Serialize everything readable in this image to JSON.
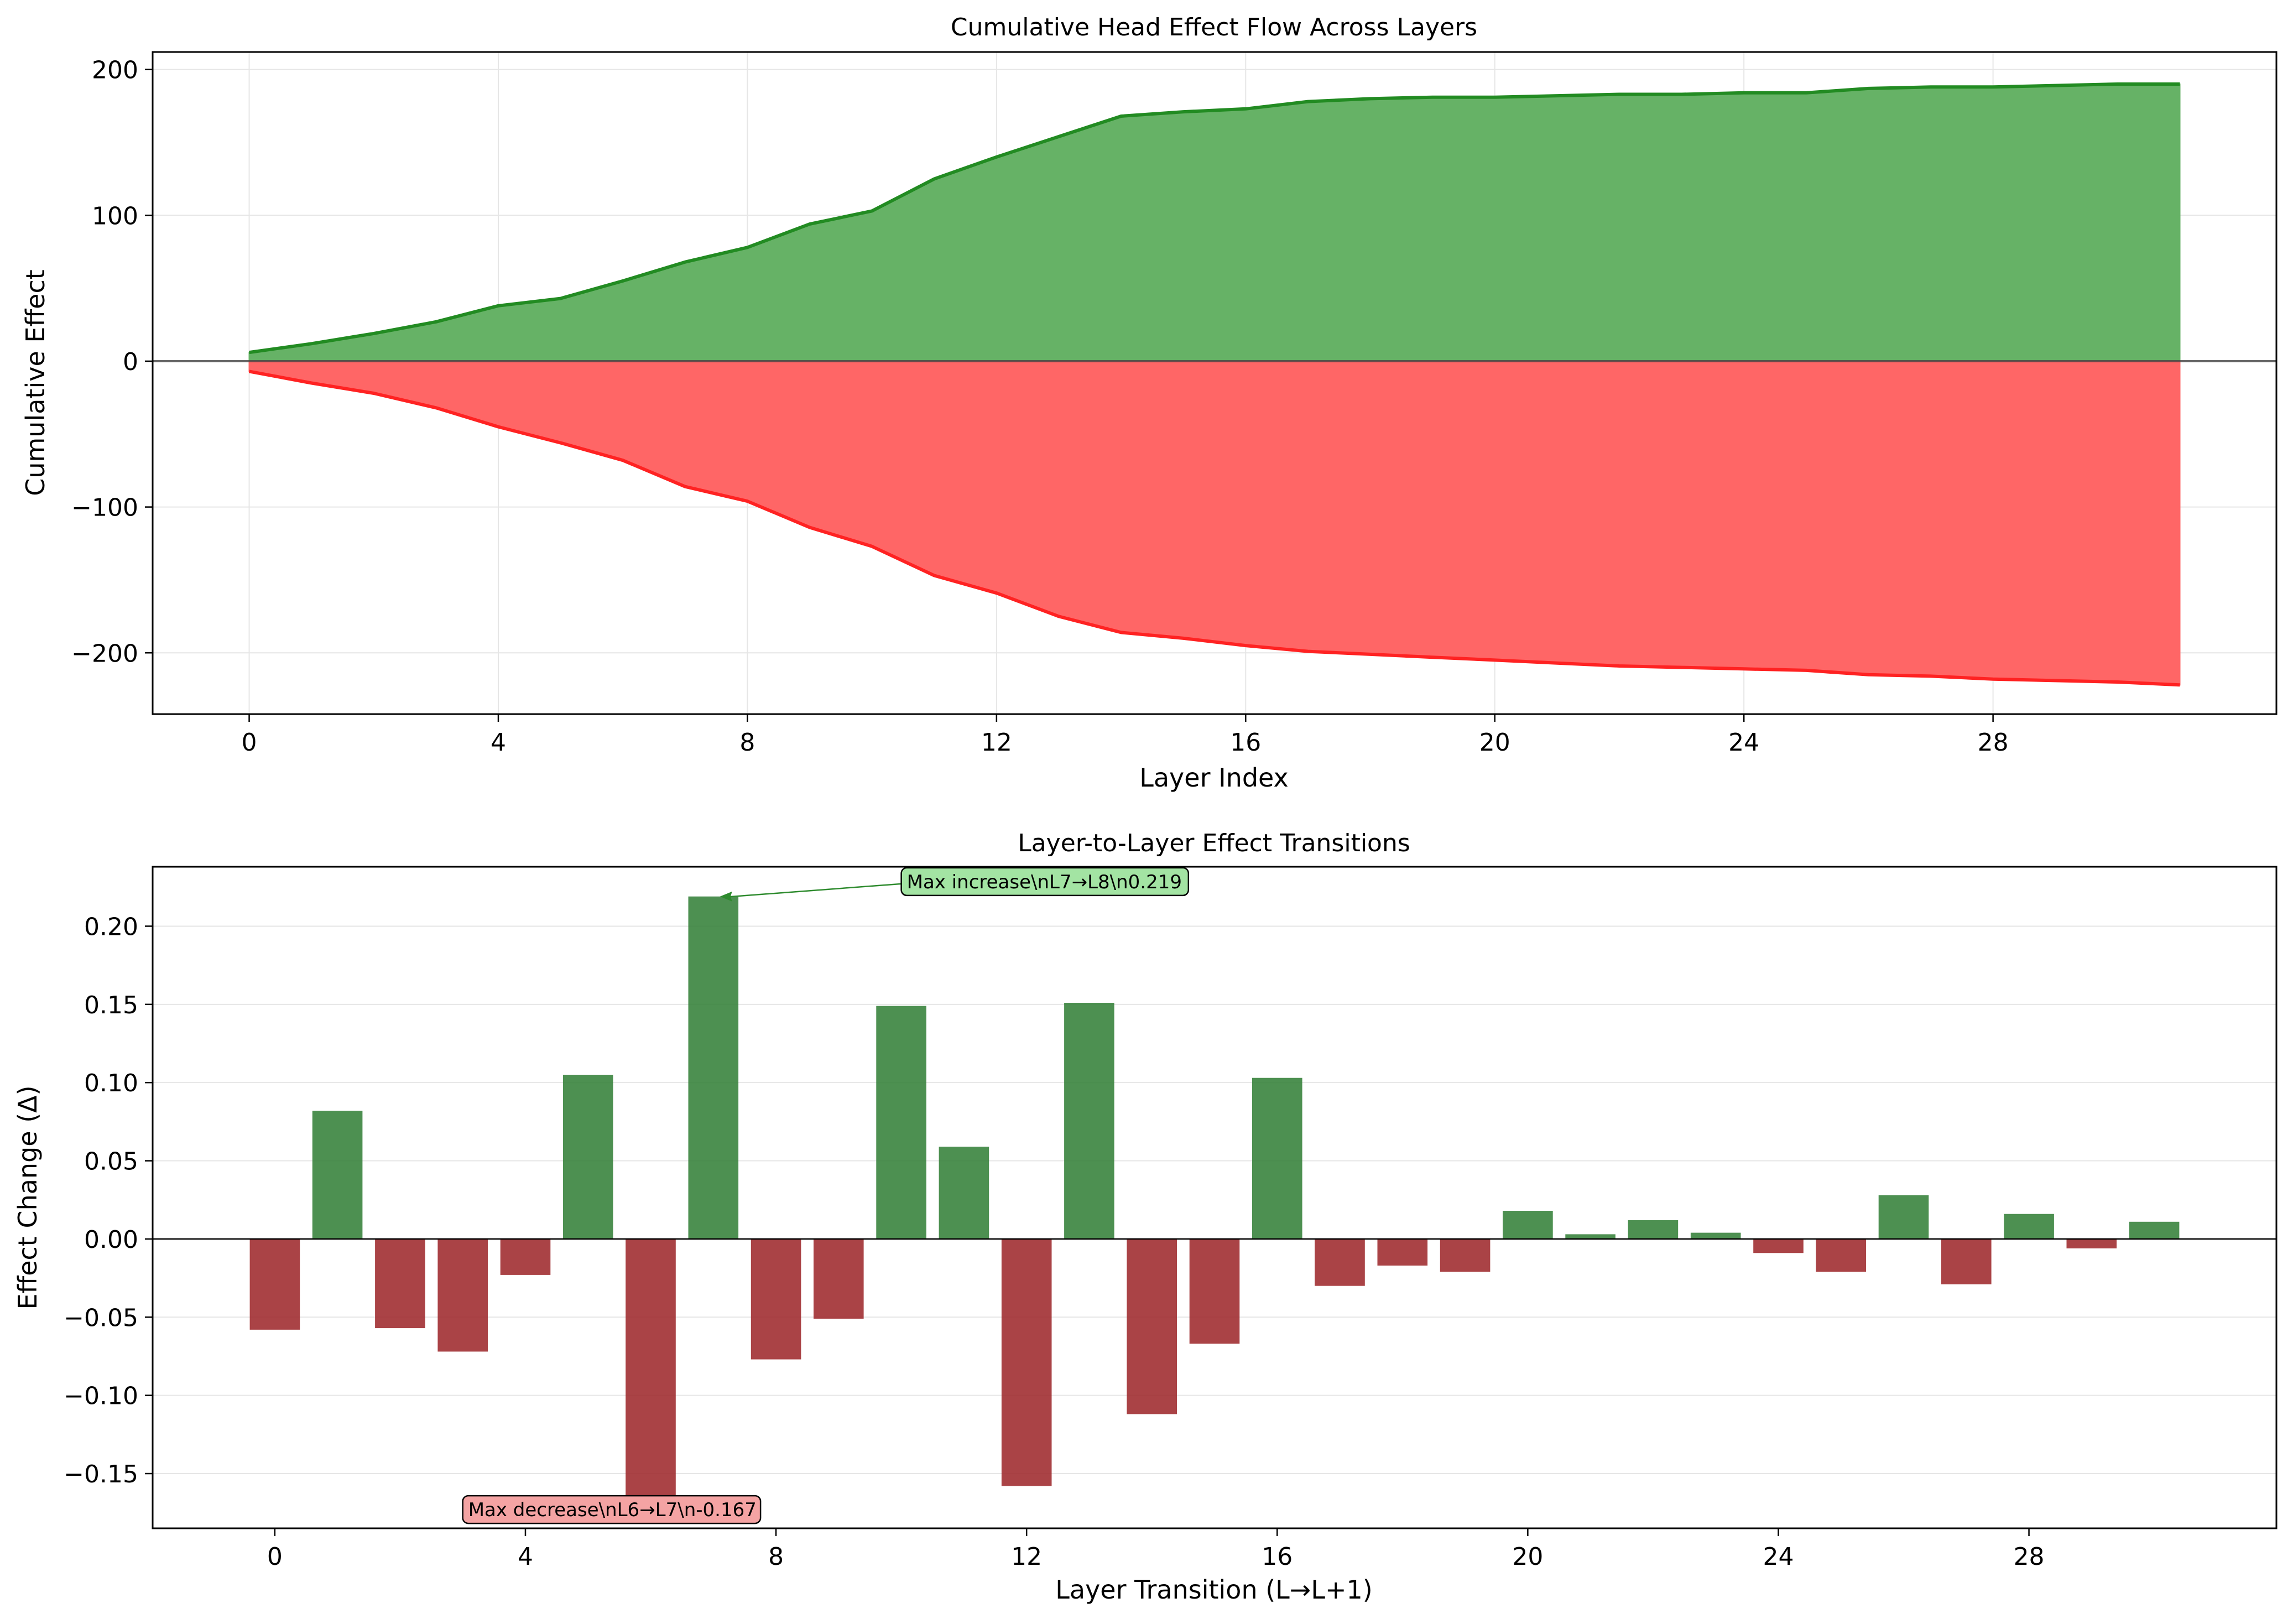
{
  "chart_data": [
    {
      "type": "area",
      "title": "Cumulative Head Effect Flow Across Layers",
      "xlabel": "Layer Index",
      "ylabel": "Cumulative Effect",
      "xlim": [
        -1.55,
        32.55
      ],
      "ylim": [
        -242,
        212
      ],
      "xticks": [
        0,
        4,
        8,
        12,
        16,
        20,
        24,
        28
      ],
      "xtick_labels": [
        "0",
        "4",
        "8",
        "12",
        "16",
        "20",
        "24",
        "28"
      ],
      "yticks": [
        200,
        100,
        0,
        -100,
        -200
      ],
      "ytick_labels": [
        "200",
        "100",
        "0",
        "−100",
        "−200"
      ],
      "grid": true,
      "zero_line": true,
      "x": [
        0,
        1,
        2,
        3,
        4,
        5,
        6,
        7,
        8,
        9,
        10,
        11,
        12,
        13,
        14,
        15,
        16,
        17,
        18,
        19,
        20,
        21,
        22,
        23,
        24,
        25,
        26,
        27,
        28,
        29,
        30,
        31
      ],
      "series": [
        {
          "key": "positive",
          "color": "#228B22",
          "fill": "#66b266",
          "values": [
            6,
            12,
            19,
            27,
            38,
            43,
            55,
            68,
            78,
            94,
            103,
            125,
            140,
            154,
            168,
            171,
            173,
            178,
            180,
            181,
            181,
            182,
            183,
            183,
            184,
            184,
            187,
            188,
            188,
            189,
            190,
            190
          ]
        },
        {
          "key": "negative",
          "color": "#ff2222",
          "fill": "#ff6666",
          "values": [
            -7,
            -15,
            -22,
            -32,
            -45,
            -56,
            -68,
            -86,
            -96,
            -114,
            -127,
            -147,
            -159,
            -175,
            -186,
            -190,
            -195,
            -199,
            -201,
            -203,
            -205,
            -207,
            -209,
            -210,
            -211,
            -212,
            -215,
            -216,
            -218,
            -219,
            -220,
            -222
          ]
        }
      ]
    },
    {
      "type": "bar",
      "title": "Layer-to-Layer Effect Transitions",
      "xlabel": "Layer Transition (L→L+1)",
      "ylabel": "Effect Change (Δ)",
      "xlim": [
        -1.95,
        31.95
      ],
      "ylim": [
        -0.185,
        0.238
      ],
      "xticks": [
        0,
        4,
        8,
        12,
        16,
        20,
        24,
        28
      ],
      "xtick_labels": [
        "0",
        "4",
        "8",
        "12",
        "16",
        "20",
        "24",
        "28"
      ],
      "yticks": [
        0.2,
        0.15,
        0.1,
        0.05,
        0.0,
        -0.05,
        -0.1,
        -0.15
      ],
      "ytick_labels": [
        "0.20",
        "0.15",
        "0.10",
        "0.05",
        "0.00",
        "−0.05",
        "−0.10",
        "−0.15"
      ],
      "grid": true,
      "positive_color": "#2e7d32",
      "negative_color": "#9b2226",
      "x": [
        0,
        1,
        2,
        3,
        4,
        5,
        6,
        7,
        8,
        9,
        10,
        11,
        12,
        13,
        14,
        15,
        16,
        17,
        18,
        19,
        20,
        21,
        22,
        23,
        24,
        25,
        26,
        27,
        28,
        29,
        30
      ],
      "values": [
        -0.058,
        0.082,
        -0.057,
        -0.072,
        -0.023,
        0.105,
        -0.167,
        0.219,
        -0.077,
        -0.051,
        0.149,
        0.059,
        -0.158,
        0.151,
        -0.112,
        -0.067,
        0.103,
        -0.03,
        -0.017,
        -0.021,
        0.018,
        0.003,
        0.012,
        0.004,
        -0.009,
        -0.021,
        0.028,
        -0.029,
        0.016,
        -0.006,
        0.011
      ],
      "annotations": [
        {
          "text": "Max increase\\nL7→L8\\n0.219",
          "target_x": 7,
          "target_y": 0.219,
          "text_x": 10,
          "text_y": 0.2285,
          "bg": "#a3e4a3",
          "arrow": true
        },
        {
          "text": "Max decrease\\nL6→L7\\n-0.167",
          "target_x": 6,
          "target_y": -0.167,
          "text_x": 3,
          "text_y": -0.173,
          "bg": "#f4a3a3",
          "arrow": false
        }
      ]
    }
  ]
}
